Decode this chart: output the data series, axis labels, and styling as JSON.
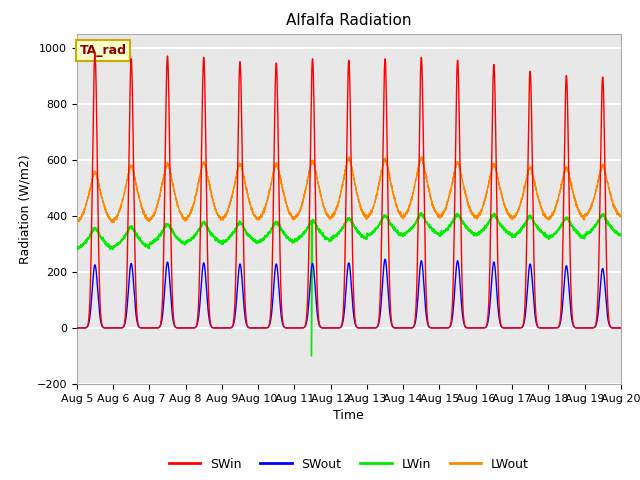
{
  "title": "Alfalfa Radiation",
  "xlabel": "Time",
  "ylabel": "Radiation (W/m2)",
  "ylim": [
    -200,
    1050
  ],
  "xlim": [
    0,
    15
  ],
  "background_color": "#e8e8e8",
  "grid_color": "white",
  "annotation_text": "TA_rad",
  "annotation_bgcolor": "#ffffcc",
  "annotation_edgecolor": "#ccaa00",
  "annotation_textcolor": "#880000",
  "colors": {
    "SWin": "#ff0000",
    "SWout": "#0000ff",
    "LWin": "#00ee00",
    "LWout": "#ff8800"
  },
  "n_days": 15,
  "points_per_day": 288,
  "SWin_peaks": [
    980,
    960,
    970,
    965,
    950,
    945,
    960,
    955,
    960,
    965,
    955,
    940,
    915,
    900,
    895
  ],
  "SWout_peaks": [
    225,
    230,
    235,
    232,
    228,
    228,
    230,
    232,
    245,
    240,
    240,
    235,
    228,
    222,
    212
  ],
  "LWin_base": [
    280,
    285,
    295,
    300,
    300,
    302,
    308,
    315,
    325,
    330,
    330,
    328,
    322,
    318,
    328
  ],
  "LWout_night": [
    375,
    378,
    380,
    382,
    383,
    383,
    385,
    388,
    390,
    392,
    390,
    388,
    385,
    385,
    395
  ],
  "LWout_day_peaks": [
    525,
    548,
    555,
    560,
    555,
    555,
    565,
    575,
    570,
    575,
    560,
    552,
    542,
    542,
    548
  ]
}
